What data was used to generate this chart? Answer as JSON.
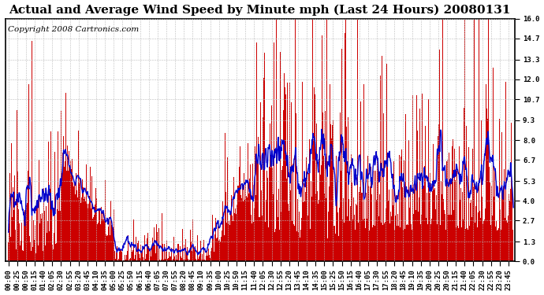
{
  "title": "Actual and Average Wind Speed by Minute mph (Last 24 Hours) 20080131",
  "copyright": "Copyright 2008 Cartronics.com",
  "ylim": [
    0.0,
    16.0
  ],
  "yticks": [
    0.0,
    1.3,
    2.7,
    4.0,
    5.3,
    6.7,
    8.0,
    9.3,
    10.7,
    12.0,
    13.3,
    14.7,
    16.0
  ],
  "bar_color": "#CC0000",
  "line_color": "#0000CC",
  "bg_color": "#FFFFFF",
  "grid_color": "#BBBBBB",
  "title_fontsize": 11,
  "copyright_fontsize": 7.5,
  "tick_fontsize": 6.5,
  "n_minutes": 1440,
  "tick_step": 25,
  "avg_window": 15
}
